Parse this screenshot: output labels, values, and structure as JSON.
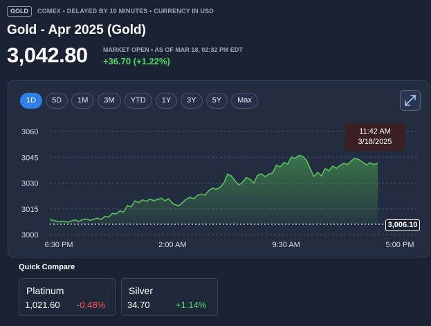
{
  "header": {
    "badge": "GOLD",
    "meta": "COMEX • DELAYED BY 10 MINUTES • CURRENCY IN USD",
    "title": "Gold - Apr 2025 (Gold)",
    "price": "3,042.80",
    "status": "MARKET OPEN • AS OF MAR 18, 02:32 PM EDT",
    "change": "+36.70 (+1.22%)",
    "change_color": "#4cd964"
  },
  "range_tabs": [
    "1D",
    "5D",
    "1M",
    "3M",
    "YTD",
    "1Y",
    "3Y",
    "5Y",
    "Max"
  ],
  "active_tab": "1D",
  "expand_icon": "expand-arrows-icon",
  "tooltip": {
    "time": "11:42 AM",
    "date": "3/18/2025"
  },
  "previous_close_label": "3,006.10",
  "chart_data": {
    "type": "area",
    "yticks": [
      "3060",
      "3045",
      "3030",
      "3015",
      "3000"
    ],
    "ylim": [
      3000,
      3060
    ],
    "xticks": [
      "6:30 PM",
      "2:00 AM",
      "9:30 AM",
      "5:00 PM"
    ],
    "x_range_hours": [
      0,
      22.5
    ],
    "previous_close": 3006.1,
    "line_color": "#5cc15a",
    "series": [
      {
        "points": [
          [
            0.0,
            3009.0
          ],
          [
            0.2,
            3008.3
          ],
          [
            0.5,
            3008.0
          ],
          [
            0.8,
            3007.4
          ],
          [
            1.1,
            3007.8
          ],
          [
            1.4,
            3007.2
          ],
          [
            1.7,
            3007.9
          ],
          [
            2.0,
            3008.5
          ],
          [
            2.3,
            3007.7
          ],
          [
            2.6,
            3008.6
          ],
          [
            2.9,
            3009.1
          ],
          [
            3.2,
            3008.3
          ],
          [
            3.5,
            3008.9
          ],
          [
            3.8,
            3009.6
          ],
          [
            4.1,
            3008.8
          ],
          [
            4.4,
            3010.6
          ],
          [
            4.7,
            3010.2
          ],
          [
            5.0,
            3012.4
          ],
          [
            5.3,
            3012.0
          ],
          [
            5.6,
            3013.8
          ],
          [
            5.9,
            3013.1
          ],
          [
            6.2,
            3016.9
          ],
          [
            6.5,
            3016.2
          ],
          [
            6.8,
            3019.6
          ],
          [
            7.1,
            3018.7
          ],
          [
            7.4,
            3020.2
          ],
          [
            7.7,
            3019.4
          ],
          [
            8.0,
            3020.6
          ],
          [
            8.3,
            3019.8
          ],
          [
            8.6,
            3020.4
          ],
          [
            8.9,
            3021.2
          ],
          [
            9.2,
            3019.7
          ],
          [
            9.5,
            3020.9
          ],
          [
            9.8,
            3018.2
          ],
          [
            10.0,
            3017.5
          ],
          [
            10.3,
            3016.8
          ],
          [
            10.6,
            3018.6
          ],
          [
            10.9,
            3020.6
          ],
          [
            11.2,
            3021.7
          ],
          [
            11.5,
            3020.9
          ],
          [
            11.8,
            3022.9
          ],
          [
            12.1,
            3023.6
          ],
          [
            12.4,
            3023.0
          ],
          [
            12.7,
            3025.7
          ],
          [
            13.0,
            3027.1
          ],
          [
            13.3,
            3026.4
          ],
          [
            13.6,
            3027.5
          ],
          [
            13.9,
            3029.9
          ],
          [
            14.2,
            3035.2
          ],
          [
            14.5,
            3034.2
          ],
          [
            14.8,
            3031.2
          ],
          [
            15.1,
            3028.9
          ],
          [
            15.4,
            3030.4
          ],
          [
            15.7,
            3033.2
          ],
          [
            16.0,
            3032.2
          ],
          [
            16.3,
            3030.0
          ],
          [
            16.6,
            3034.5
          ],
          [
            16.9,
            3035.4
          ],
          [
            17.2,
            3033.7
          ],
          [
            17.5,
            3035.2
          ],
          [
            17.8,
            3035.9
          ],
          [
            18.1,
            3040.4
          ],
          [
            18.4,
            3039.4
          ],
          [
            18.7,
            3042.0
          ],
          [
            19.0,
            3041.0
          ],
          [
            19.3,
            3045.2
          ],
          [
            19.6,
            3044.3
          ],
          [
            19.9,
            3046.1
          ],
          [
            20.2,
            3045.6
          ],
          [
            20.5,
            3043.3
          ],
          [
            20.8,
            3038.4
          ],
          [
            21.1,
            3033.8
          ],
          [
            21.4,
            3036.2
          ],
          [
            21.7,
            3034.2
          ],
          [
            22.0,
            3038.5
          ],
          [
            22.3,
            3037.1
          ],
          [
            22.6,
            3039.9
          ],
          [
            22.9,
            3038.6
          ],
          [
            23.2,
            3040.3
          ],
          [
            23.5,
            3041.6
          ],
          [
            23.8,
            3040.8
          ],
          [
            24.1,
            3043.1
          ],
          [
            24.4,
            3044.4
          ],
          [
            24.7,
            3043.6
          ],
          [
            25.0,
            3042.2
          ],
          [
            25.3,
            3040.6
          ],
          [
            25.6,
            3041.8
          ],
          [
            25.9,
            3040.8
          ],
          [
            26.2,
            3041.6
          ]
        ]
      }
    ]
  },
  "quick_compare": {
    "title": "Quick Compare",
    "items": [
      {
        "name": "Platinum",
        "value": "1,021.60",
        "change": "-0.48%",
        "direction": "down"
      },
      {
        "name": "Silver",
        "value": "34.70",
        "change": "+1.14%",
        "direction": "up"
      }
    ]
  }
}
